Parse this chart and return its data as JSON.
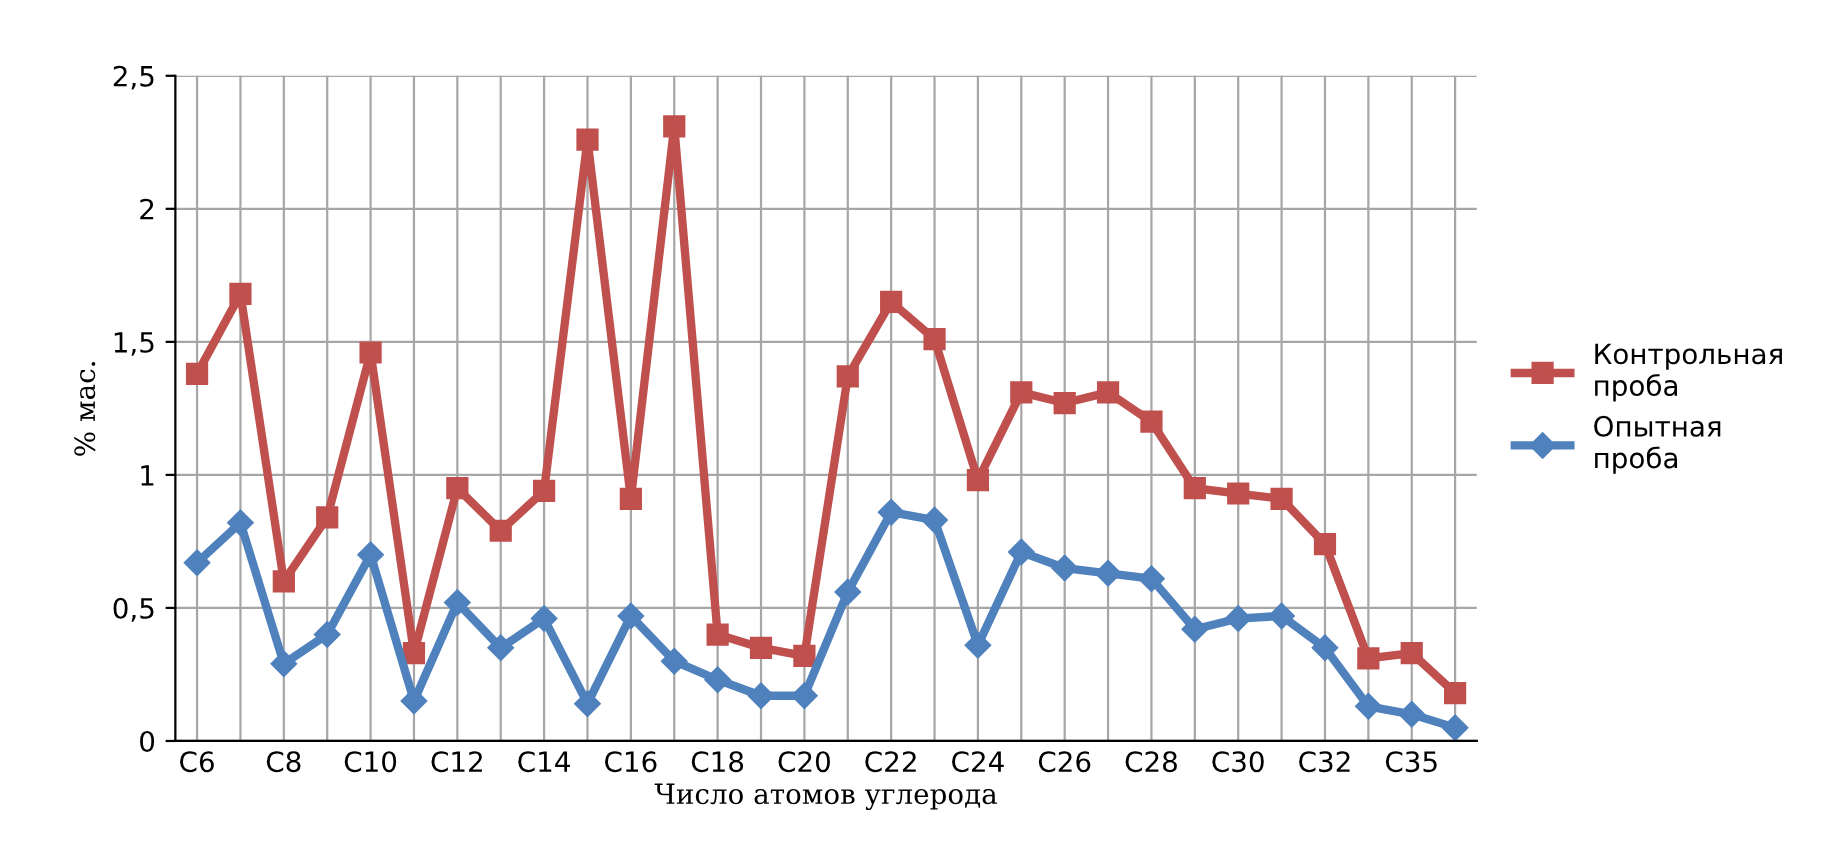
{
  "chart_data": {
    "type": "line",
    "xlabel": "Число атомов углерода",
    "ylabel": "% мас.",
    "categories": [
      "C6",
      null,
      "C8",
      null,
      "C10",
      null,
      "C12",
      null,
      "C14",
      null,
      "C16",
      null,
      "C18",
      null,
      "C20",
      null,
      "C22",
      null,
      "C24",
      null,
      "C26",
      null,
      "C28",
      null,
      "C30",
      null,
      "C32",
      null,
      "C35",
      null
    ],
    "series": [
      {
        "name": "Контрольная проба",
        "color": "#c0504d",
        "marker": "square",
        "values": [
          1.38,
          1.68,
          0.6,
          0.84,
          1.46,
          0.33,
          0.95,
          0.79,
          0.94,
          2.26,
          0.91,
          2.31,
          0.4,
          0.35,
          0.32,
          1.37,
          1.65,
          1.51,
          0.98,
          1.31,
          1.27,
          1.31,
          1.2,
          0.95,
          0.93,
          0.91,
          0.74,
          0.31,
          0.33,
          0.18
        ]
      },
      {
        "name": "Опытная проба",
        "color": "#4f81bd",
        "marker": "diamond",
        "values": [
          0.67,
          0.82,
          0.29,
          0.4,
          0.7,
          0.15,
          0.52,
          0.35,
          0.46,
          0.14,
          0.47,
          0.3,
          0.23,
          0.17,
          0.17,
          0.56,
          0.86,
          0.83,
          0.36,
          0.71,
          0.65,
          0.63,
          0.61,
          0.42,
          0.46,
          0.47,
          0.35,
          0.13,
          0.1,
          0.05
        ]
      }
    ],
    "ylim": [
      0,
      2.5
    ],
    "yticks": [
      0,
      {
        "value": 0.5,
        "label": "0,5"
      },
      1,
      {
        "value": 1.5,
        "label": "1,5"
      },
      2,
      {
        "value": 2.5,
        "label": "2,5"
      }
    ],
    "grid": true,
    "legend": "right",
    "line_style": "solid"
  }
}
